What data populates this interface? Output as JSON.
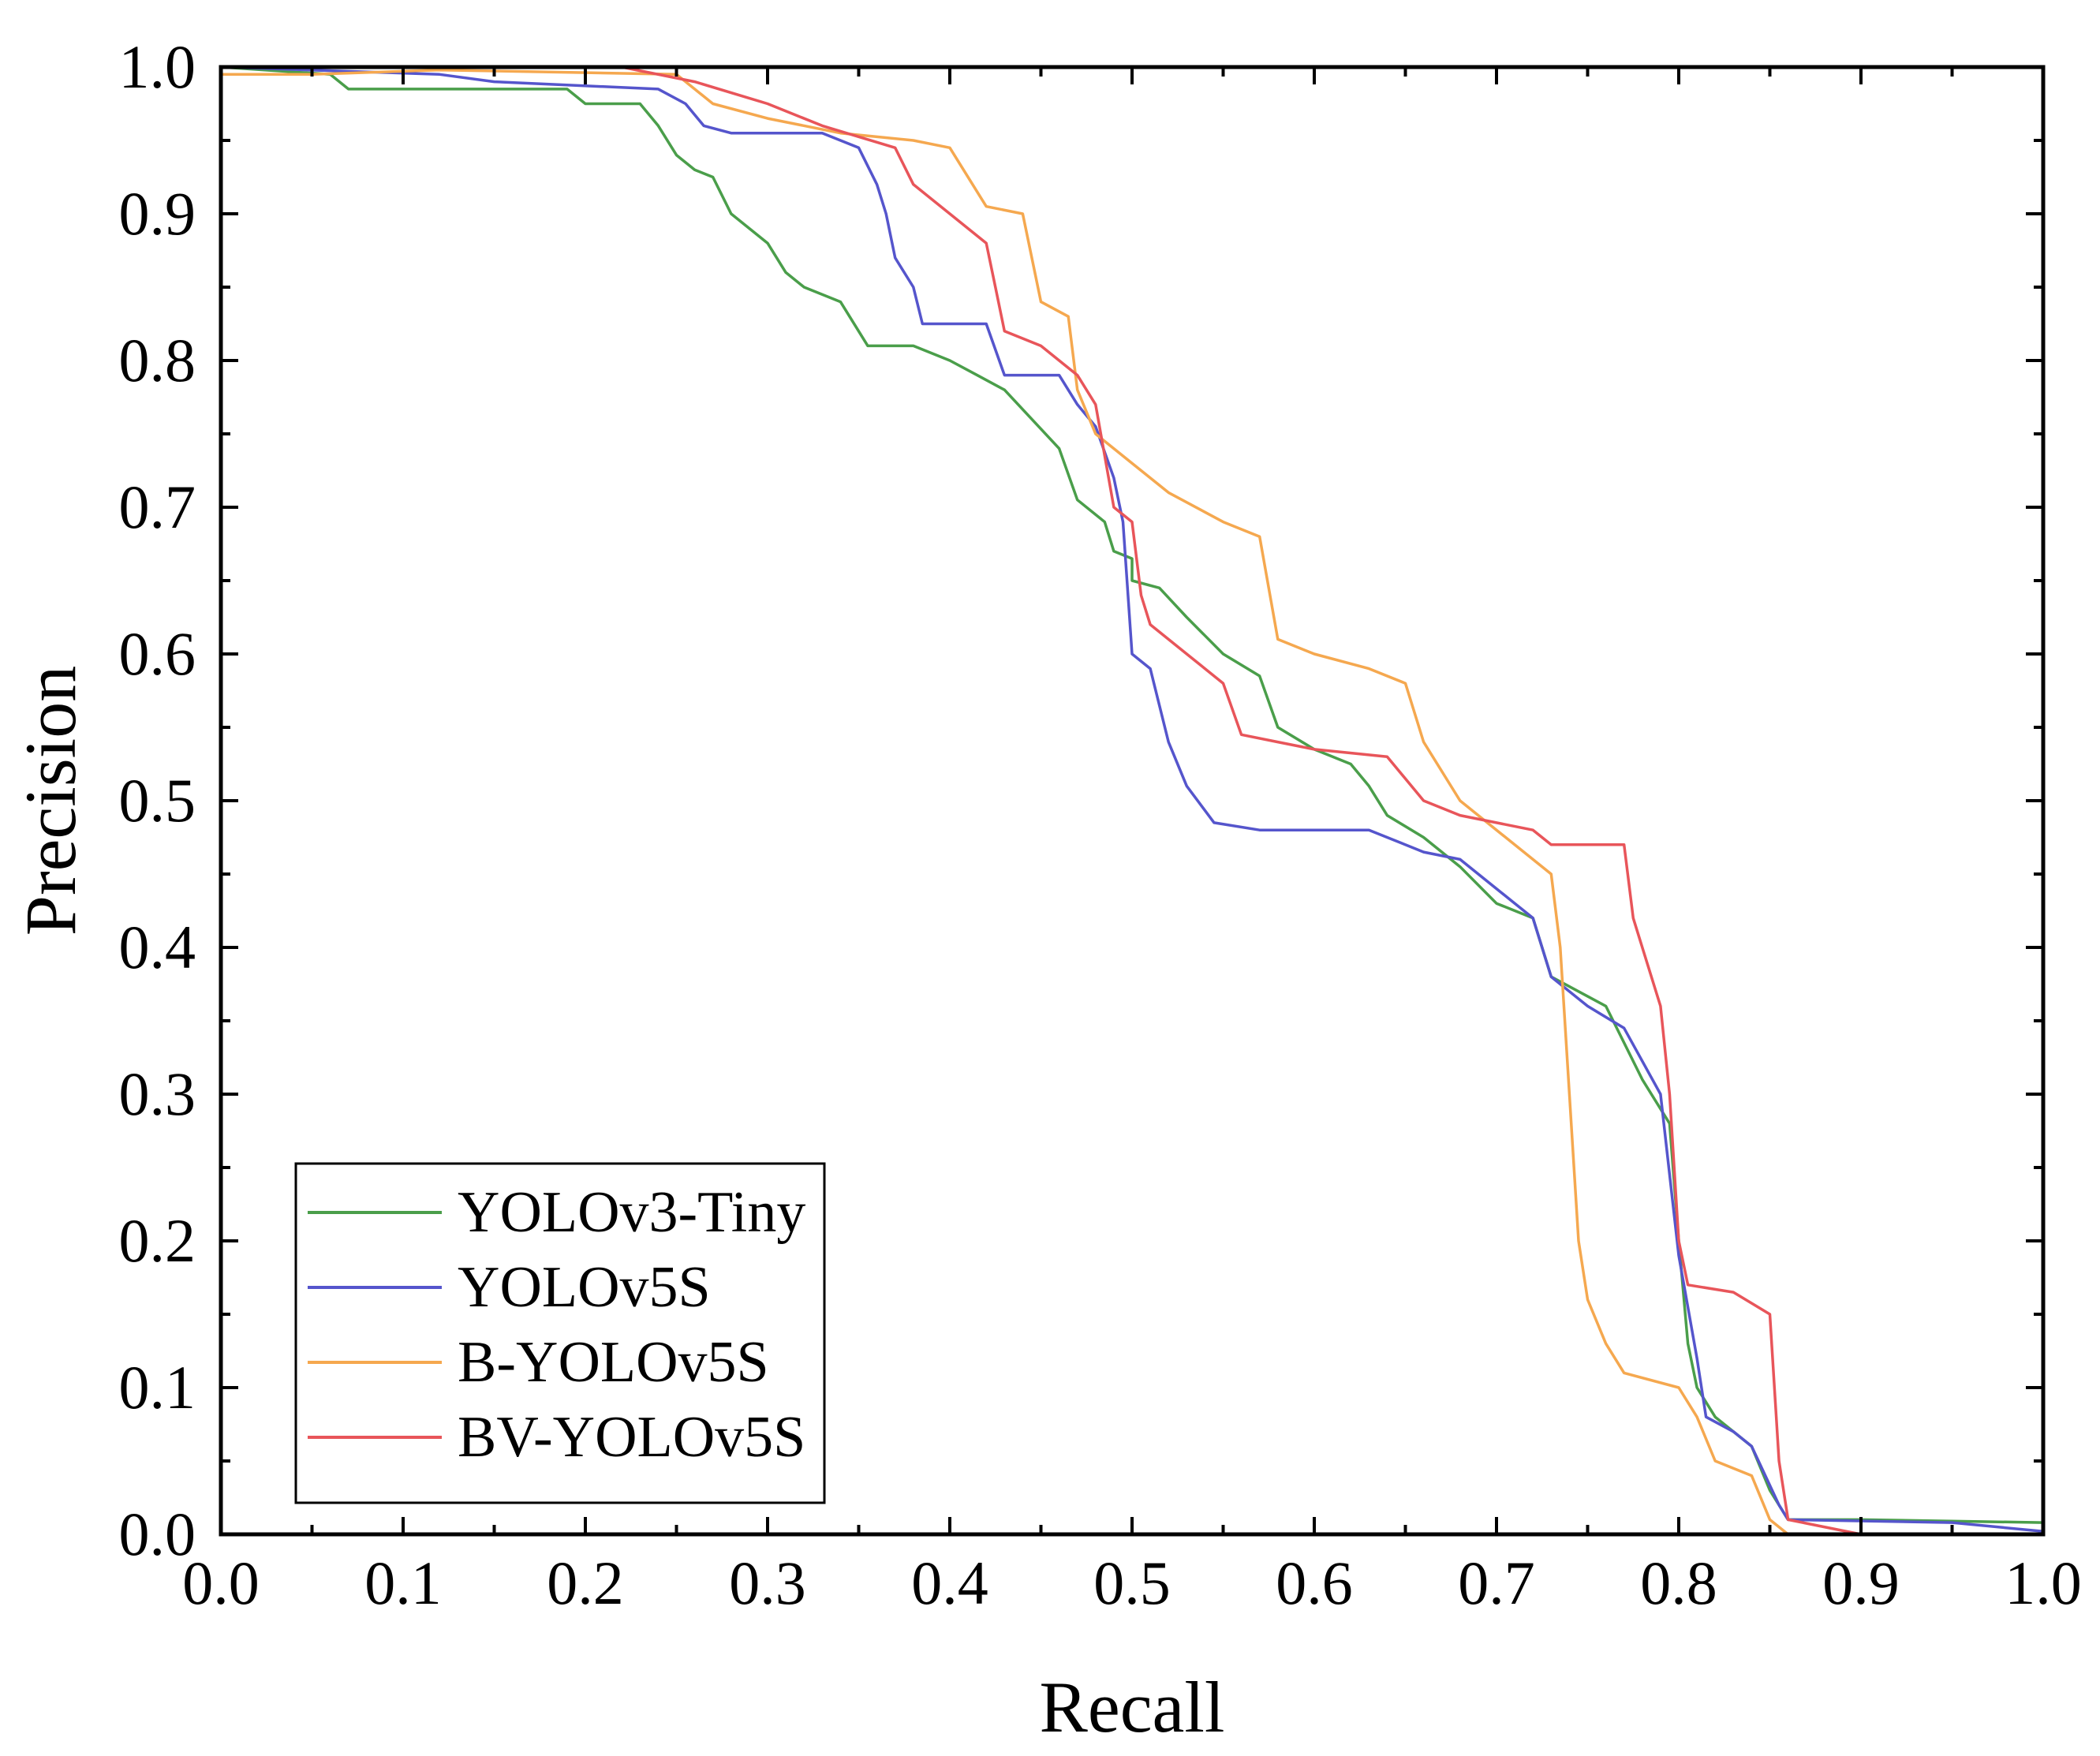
{
  "chart_data": {
    "type": "line",
    "title": "",
    "xlabel": "Recall",
    "ylabel": "Precision",
    "xlim": [
      0.0,
      1.0
    ],
    "ylim": [
      0.0,
      1.0
    ],
    "xticks": [
      "0.0",
      "0.1",
      "0.2",
      "0.3",
      "0.4",
      "0.5",
      "0.6",
      "0.7",
      "0.8",
      "0.9",
      "1.0"
    ],
    "yticks": [
      "0.0",
      "0.1",
      "0.2",
      "0.3",
      "0.4",
      "0.5",
      "0.6",
      "0.7",
      "0.8",
      "0.9",
      "1.0"
    ],
    "grid": false,
    "legend_position": "bottom-left",
    "series": [
      {
        "name": "YOLOv3-Tiny",
        "color": "#4a9e4a",
        "points": [
          [
            0.0,
            1.0
          ],
          [
            0.06,
            0.995
          ],
          [
            0.07,
            0.985
          ],
          [
            0.1,
            0.985
          ],
          [
            0.12,
            0.985
          ],
          [
            0.19,
            0.985
          ],
          [
            0.2,
            0.975
          ],
          [
            0.23,
            0.975
          ],
          [
            0.24,
            0.96
          ],
          [
            0.25,
            0.94
          ],
          [
            0.26,
            0.93
          ],
          [
            0.27,
            0.925
          ],
          [
            0.28,
            0.9
          ],
          [
            0.3,
            0.88
          ],
          [
            0.31,
            0.86
          ],
          [
            0.32,
            0.85
          ],
          [
            0.34,
            0.84
          ],
          [
            0.355,
            0.81
          ],
          [
            0.38,
            0.81
          ],
          [
            0.4,
            0.8
          ],
          [
            0.415,
            0.79
          ],
          [
            0.43,
            0.78
          ],
          [
            0.445,
            0.76
          ],
          [
            0.46,
            0.74
          ],
          [
            0.47,
            0.705
          ],
          [
            0.485,
            0.69
          ],
          [
            0.49,
            0.67
          ],
          [
            0.5,
            0.665
          ],
          [
            0.5,
            0.65
          ],
          [
            0.515,
            0.645
          ],
          [
            0.53,
            0.625
          ],
          [
            0.55,
            0.6
          ],
          [
            0.57,
            0.585
          ],
          [
            0.58,
            0.55
          ],
          [
            0.6,
            0.535
          ],
          [
            0.62,
            0.525
          ],
          [
            0.63,
            0.51
          ],
          [
            0.64,
            0.49
          ],
          [
            0.66,
            0.475
          ],
          [
            0.68,
            0.455
          ],
          [
            0.7,
            0.43
          ],
          [
            0.72,
            0.42
          ],
          [
            0.73,
            0.38
          ],
          [
            0.76,
            0.36
          ],
          [
            0.78,
            0.31
          ],
          [
            0.795,
            0.28
          ],
          [
            0.8,
            0.2
          ],
          [
            0.805,
            0.13
          ],
          [
            0.81,
            0.1
          ],
          [
            0.82,
            0.08
          ],
          [
            0.84,
            0.06
          ],
          [
            0.85,
            0.03
          ],
          [
            0.86,
            0.01
          ],
          [
            0.9,
            0.01
          ],
          [
            1.0,
            0.008
          ]
        ]
      },
      {
        "name": "YOLOv5S",
        "color": "#5555cc",
        "points": [
          [
            0.0,
            1.0
          ],
          [
            0.12,
            0.995
          ],
          [
            0.15,
            0.99
          ],
          [
            0.24,
            0.985
          ],
          [
            0.255,
            0.975
          ],
          [
            0.265,
            0.96
          ],
          [
            0.28,
            0.955
          ],
          [
            0.33,
            0.955
          ],
          [
            0.35,
            0.945
          ],
          [
            0.36,
            0.92
          ],
          [
            0.365,
            0.9
          ],
          [
            0.37,
            0.87
          ],
          [
            0.38,
            0.85
          ],
          [
            0.385,
            0.825
          ],
          [
            0.42,
            0.825
          ],
          [
            0.43,
            0.79
          ],
          [
            0.46,
            0.79
          ],
          [
            0.47,
            0.77
          ],
          [
            0.48,
            0.755
          ],
          [
            0.49,
            0.72
          ],
          [
            0.495,
            0.69
          ],
          [
            0.5,
            0.6
          ],
          [
            0.51,
            0.59
          ],
          [
            0.52,
            0.54
          ],
          [
            0.53,
            0.51
          ],
          [
            0.545,
            0.485
          ],
          [
            0.57,
            0.48
          ],
          [
            0.63,
            0.48
          ],
          [
            0.66,
            0.465
          ],
          [
            0.68,
            0.46
          ],
          [
            0.7,
            0.44
          ],
          [
            0.72,
            0.42
          ],
          [
            0.73,
            0.38
          ],
          [
            0.75,
            0.36
          ],
          [
            0.77,
            0.345
          ],
          [
            0.79,
            0.3
          ],
          [
            0.8,
            0.19
          ],
          [
            0.81,
            0.12
          ],
          [
            0.815,
            0.08
          ],
          [
            0.83,
            0.07
          ],
          [
            0.84,
            0.06
          ],
          [
            0.855,
            0.02
          ],
          [
            0.86,
            0.01
          ],
          [
            0.95,
            0.008
          ],
          [
            1.0,
            0.002
          ]
        ]
      },
      {
        "name": "B-YOLOv5S",
        "color": "#f5a84f",
        "points": [
          [
            0.0,
            0.995
          ],
          [
            0.05,
            0.995
          ],
          [
            0.12,
            0.998
          ],
          [
            0.25,
            0.995
          ],
          [
            0.27,
            0.975
          ],
          [
            0.3,
            0.965
          ],
          [
            0.34,
            0.955
          ],
          [
            0.38,
            0.95
          ],
          [
            0.4,
            0.945
          ],
          [
            0.42,
            0.905
          ],
          [
            0.44,
            0.9
          ],
          [
            0.45,
            0.84
          ],
          [
            0.465,
            0.83
          ],
          [
            0.47,
            0.78
          ],
          [
            0.48,
            0.75
          ],
          [
            0.5,
            0.73
          ],
          [
            0.52,
            0.71
          ],
          [
            0.55,
            0.69
          ],
          [
            0.57,
            0.68
          ],
          [
            0.58,
            0.61
          ],
          [
            0.6,
            0.6
          ],
          [
            0.63,
            0.59
          ],
          [
            0.65,
            0.58
          ],
          [
            0.66,
            0.54
          ],
          [
            0.68,
            0.5
          ],
          [
            0.7,
            0.48
          ],
          [
            0.73,
            0.45
          ],
          [
            0.735,
            0.4
          ],
          [
            0.74,
            0.3
          ],
          [
            0.745,
            0.2
          ],
          [
            0.75,
            0.16
          ],
          [
            0.76,
            0.13
          ],
          [
            0.77,
            0.11
          ],
          [
            0.8,
            0.1
          ],
          [
            0.81,
            0.08
          ],
          [
            0.82,
            0.05
          ],
          [
            0.84,
            0.04
          ],
          [
            0.85,
            0.01
          ],
          [
            0.86,
            0.0
          ],
          [
            1.0,
            0.0
          ]
        ]
      },
      {
        "name": "BV-YOLOv5S",
        "color": "#e8555a",
        "points": [
          [
            0.0,
            1.0
          ],
          [
            0.22,
            1.0
          ],
          [
            0.26,
            0.99
          ],
          [
            0.3,
            0.975
          ],
          [
            0.33,
            0.96
          ],
          [
            0.37,
            0.945
          ],
          [
            0.38,
            0.92
          ],
          [
            0.4,
            0.9
          ],
          [
            0.42,
            0.88
          ],
          [
            0.425,
            0.85
          ],
          [
            0.43,
            0.82
          ],
          [
            0.45,
            0.81
          ],
          [
            0.47,
            0.79
          ],
          [
            0.48,
            0.77
          ],
          [
            0.49,
            0.7
          ],
          [
            0.5,
            0.69
          ],
          [
            0.505,
            0.64
          ],
          [
            0.51,
            0.62
          ],
          [
            0.53,
            0.6
          ],
          [
            0.55,
            0.58
          ],
          [
            0.56,
            0.545
          ],
          [
            0.58,
            0.54
          ],
          [
            0.6,
            0.535
          ],
          [
            0.64,
            0.53
          ],
          [
            0.66,
            0.5
          ],
          [
            0.68,
            0.49
          ],
          [
            0.72,
            0.48
          ],
          [
            0.73,
            0.47
          ],
          [
            0.77,
            0.47
          ],
          [
            0.775,
            0.42
          ],
          [
            0.78,
            0.4
          ],
          [
            0.79,
            0.36
          ],
          [
            0.795,
            0.3
          ],
          [
            0.8,
            0.2
          ],
          [
            0.805,
            0.17
          ],
          [
            0.83,
            0.165
          ],
          [
            0.85,
            0.15
          ],
          [
            0.855,
            0.05
          ],
          [
            0.86,
            0.01
          ],
          [
            0.9,
            0.0
          ],
          [
            1.0,
            0.0
          ]
        ]
      }
    ]
  }
}
